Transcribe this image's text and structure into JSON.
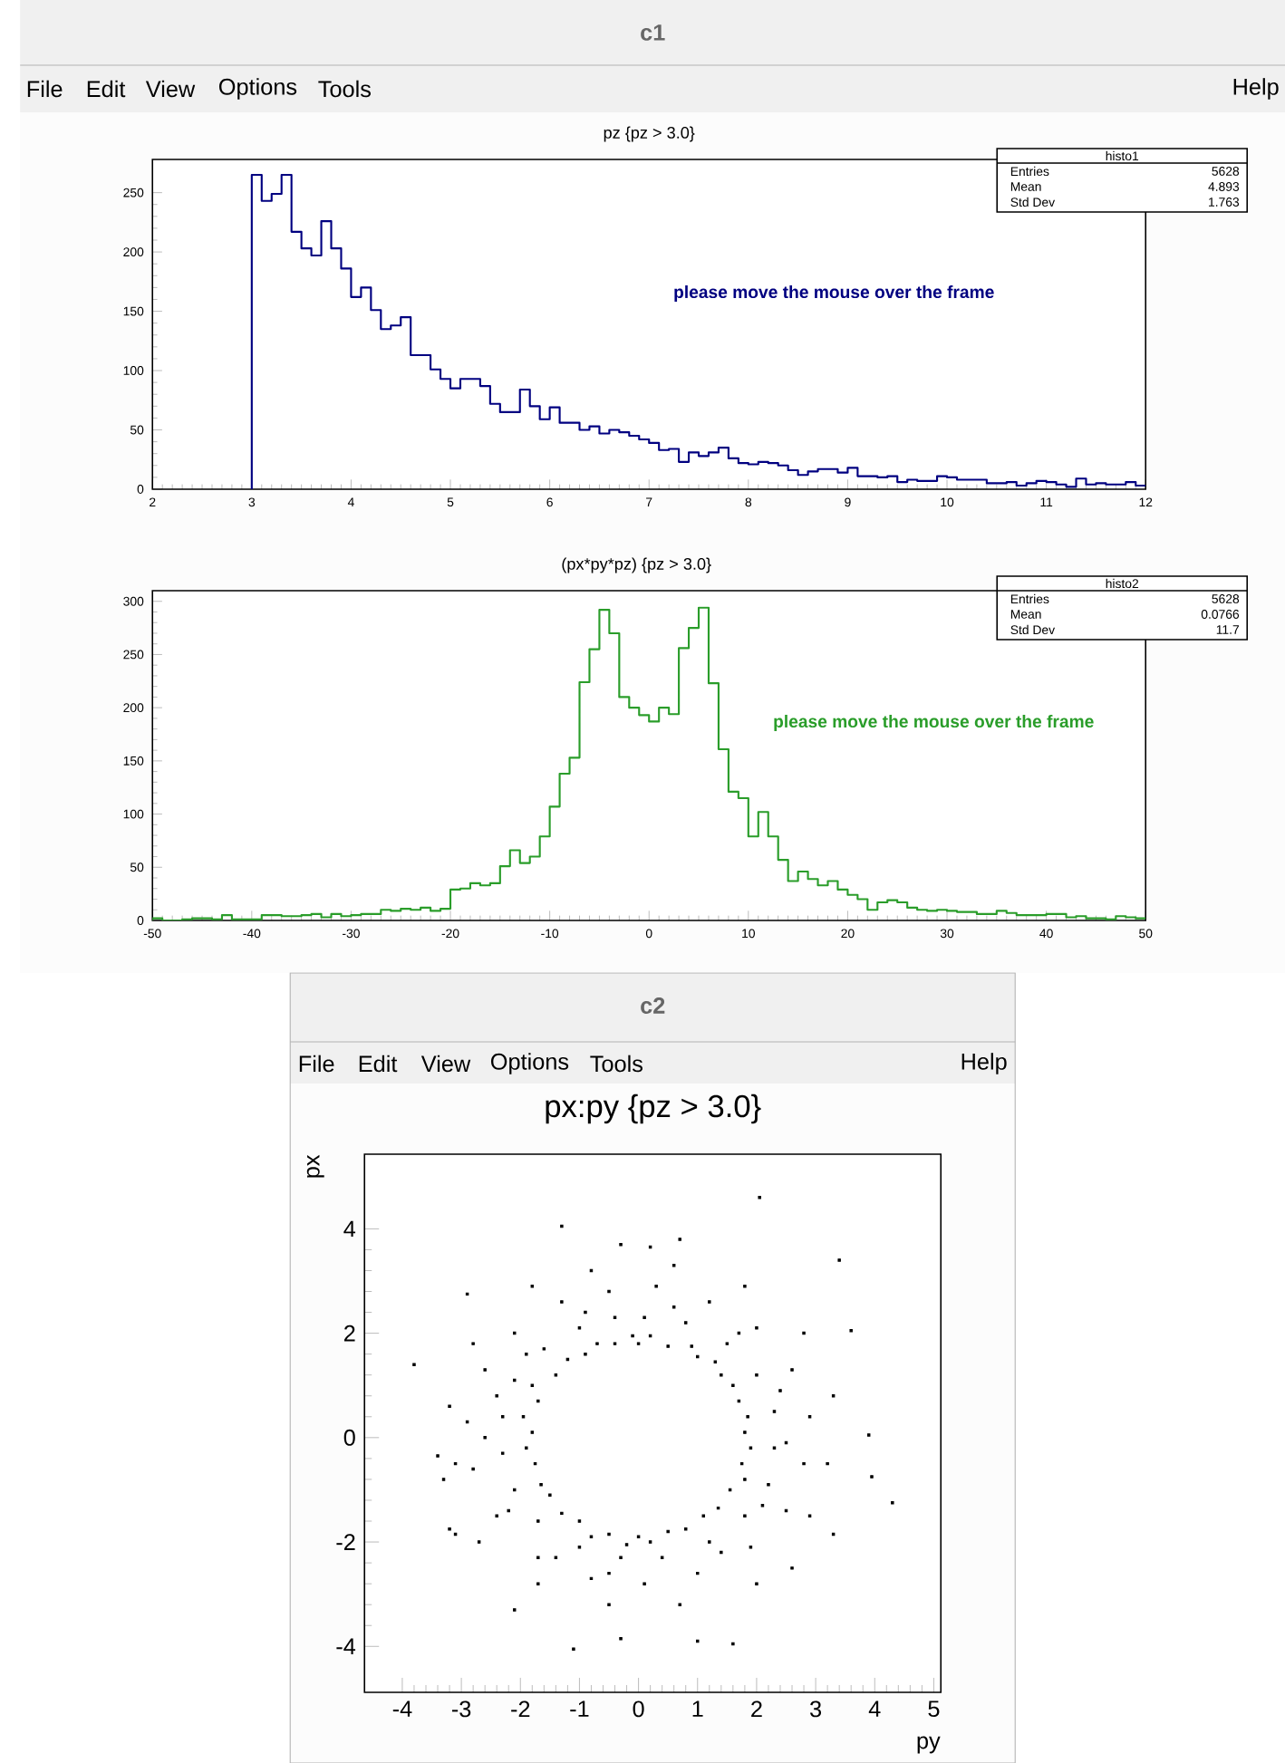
{
  "chart_data": [
    {
      "type": "histogram",
      "title": "pz {pz > 3.0}",
      "color": "#000080",
      "xlim": [
        2,
        12
      ],
      "ylim": [
        0,
        278
      ],
      "xticks": [
        2,
        3,
        4,
        5,
        6,
        7,
        8,
        9,
        10,
        11,
        12
      ],
      "yticks": [
        0,
        50,
        100,
        150,
        200,
        250
      ],
      "bins": [
        3.0,
        3.1,
        3.2,
        3.3,
        3.4,
        3.5,
        3.6,
        3.7,
        3.8,
        3.9,
        4.0,
        4.1,
        4.2,
        4.3,
        4.4,
        4.5,
        4.6,
        4.7,
        4.8,
        4.9,
        5.0,
        5.1,
        5.2,
        5.3,
        5.4,
        5.5,
        5.6,
        5.7,
        5.8,
        5.9,
        6.0,
        6.1,
        6.2,
        6.3,
        6.4,
        6.5,
        6.6,
        6.7,
        6.8,
        6.9,
        7.0,
        7.1,
        7.2,
        7.3,
        7.4,
        7.5,
        7.6,
        7.7,
        7.8,
        7.9,
        8.0,
        8.1,
        8.2,
        8.3,
        8.4,
        8.5,
        8.6,
        8.7,
        8.8,
        8.9,
        9.0,
        9.1,
        9.2,
        9.3,
        9.4,
        9.5,
        9.6,
        9.7,
        9.8,
        9.9,
        10.0,
        10.1,
        10.2,
        10.3,
        10.4,
        10.5,
        10.6,
        10.7,
        10.8,
        10.9,
        11.0,
        11.1,
        11.2,
        11.3,
        11.4,
        11.5,
        11.6,
        11.7,
        11.8,
        11.9,
        12.0
      ],
      "values": [
        265,
        243,
        249,
        265,
        217,
        203,
        197,
        226,
        203,
        186,
        162,
        170,
        151,
        135,
        138,
        145,
        113,
        113,
        101,
        93,
        85,
        93,
        93,
        87,
        72,
        65,
        65,
        84,
        70,
        59,
        69,
        56,
        56,
        50,
        53,
        47,
        50,
        48,
        45,
        42,
        39,
        33,
        34,
        23,
        31,
        28,
        31,
        35,
        26,
        22,
        21,
        23,
        22,
        20,
        16,
        12,
        15,
        17,
        17,
        14,
        18,
        11,
        11,
        10,
        11,
        6,
        8,
        7,
        7,
        11,
        10,
        8,
        8,
        8,
        5,
        5,
        6,
        3,
        5,
        7,
        6,
        4,
        2,
        9,
        4,
        5,
        4,
        4,
        6,
        3
      ],
      "annotations": [
        "c1",
        "File",
        "Edit",
        "View",
        "Options",
        "Tools",
        "Help",
        "please move the mouse over the frame",
        "histo1",
        "Entries",
        "5628",
        "Mean",
        "4.893",
        "Std Dev",
        "1.763"
      ]
    },
    {
      "type": "histogram",
      "title": "(px*py*pz) {pz > 3.0}",
      "color": "#2a9d2a",
      "xlim": [
        -50,
        50
      ],
      "ylim": [
        0,
        310
      ],
      "xticks": [
        -50,
        -40,
        -30,
        -20,
        -10,
        0,
        10,
        20,
        30,
        40,
        50
      ],
      "yticks": [
        0,
        50,
        100,
        150,
        200,
        250,
        300
      ],
      "bins": [
        -50,
        -49,
        -48,
        -47,
        -46,
        -45,
        -44,
        -43,
        -42,
        -41,
        -40,
        -39,
        -38,
        -37,
        -36,
        -35,
        -34,
        -33,
        -32,
        -31,
        -30,
        -29,
        -28,
        -27,
        -26,
        -25,
        -24,
        -23,
        -22,
        -21,
        -20,
        -19,
        -18,
        -17,
        -16,
        -15,
        -14,
        -13,
        -12,
        -11,
        -10,
        -9,
        -8,
        -7,
        -6,
        -5,
        -4,
        -3,
        -2,
        -1,
        0,
        1,
        2,
        3,
        4,
        5,
        6,
        7,
        8,
        9,
        10,
        11,
        12,
        13,
        14,
        15,
        16,
        17,
        18,
        19,
        20,
        21,
        22,
        23,
        24,
        25,
        26,
        27,
        28,
        29,
        30,
        31,
        32,
        33,
        34,
        35,
        36,
        37,
        38,
        39,
        40,
        41,
        42,
        43,
        44,
        45,
        46,
        47,
        48,
        49,
        50
      ],
      "values": [
        2,
        0,
        0,
        1,
        2,
        2,
        1,
        5,
        1,
        1,
        1,
        5,
        5,
        4,
        4,
        5,
        6,
        3,
        6,
        4,
        5,
        6,
        6,
        10,
        9,
        11,
        10,
        12,
        9,
        11,
        29,
        30,
        35,
        33,
        35,
        51,
        66,
        54,
        60,
        79,
        107,
        138,
        153,
        224,
        255,
        292,
        270,
        210,
        200,
        193,
        187,
        200,
        194,
        256,
        275,
        294,
        223,
        161,
        121,
        115,
        79,
        102,
        79,
        57,
        37,
        46,
        39,
        33,
        37,
        29,
        24,
        20,
        10,
        17,
        19,
        17,
        12,
        10,
        9,
        10,
        9,
        8,
        8,
        6,
        6,
        9,
        7,
        5,
        5,
        5,
        6,
        6,
        3,
        4,
        2,
        2,
        1,
        4,
        3,
        2
      ],
      "annotations": [
        "please move the mouse over the frame",
        "histo2",
        "Entries",
        "5628",
        "Mean",
        "0.0766",
        "Std Dev",
        "11.7"
      ]
    },
    {
      "type": "scatter",
      "title": "px:py {pz > 3.0}",
      "xlabel": "py",
      "ylabel": "px",
      "color": "#000000",
      "marker": "square",
      "xlim": [
        -4.64,
        5.12
      ],
      "ylim": [
        -4.88,
        5.43
      ],
      "xticks": [
        -4,
        -3,
        -2,
        -1,
        0,
        1,
        2,
        3,
        4,
        5
      ],
      "yticks": [
        -4,
        -2,
        0,
        2,
        4
      ],
      "x": [
        2.05,
        -1.3,
        0.7,
        -0.3,
        0.2,
        3.4,
        -2.9,
        -3.8,
        3.6,
        4.3,
        3.95,
        3.9,
        -3.4,
        -3.1,
        -3.2,
        -1.1,
        -0.3,
        1.6,
        1.0,
        -2.1,
        2.6,
        -3.3,
        3.3,
        0,
        0.5,
        1.0,
        1.4,
        1.7,
        1.8,
        1.75,
        1.55,
        1.1,
        0.5,
        0,
        -0.5,
        -1.0,
        -1.5,
        -1.75,
        -1.8,
        -1.7,
        -1.4,
        -0.9,
        -0.4,
        0.1,
        0.8,
        1.5,
        2.0,
        2.3,
        2.3,
        2.2,
        1.8,
        1.2,
        0.4,
        -0.3,
        -1.0,
        -1.7,
        -2.1,
        -2.3,
        -2.3,
        -2.1,
        -1.6,
        -1.0,
        -0.4,
        0.3,
        1.2,
        2.0,
        2.6,
        2.9,
        2.8,
        2.5,
        1.9,
        1.0,
        0.1,
        -0.8,
        -1.7,
        -2.4,
        -2.8,
        -2.9,
        -2.6,
        -2.1,
        -1.3,
        -0.5,
        0.2,
        0.9,
        1.3,
        1.6,
        1.85,
        1.9,
        1.8,
        1.35,
        0.8,
        0.2,
        -0.2,
        -0.8,
        -1.3,
        -1.65,
        -1.9,
        -1.95,
        -1.8,
        -1.2,
        -0.7,
        -0.1,
        0.6,
        1.7,
        2.4,
        2.5,
        2.1,
        1.4,
        -0.5,
        -1.4,
        -2.2,
        -2.6,
        -2.4,
        -1.9,
        -0.9,
        0.6,
        1.8,
        2.8,
        3.3,
        3.2,
        2.9,
        2.0,
        0.7,
        -0.5,
        -1.7,
        -2.7,
        -3.1,
        -3.2,
        -2.8,
        -1.8,
        -0.8
      ],
      "values": [
        4.6,
        4.05,
        3.8,
        3.7,
        3.65,
        3.4,
        2.75,
        1.4,
        2.05,
        -1.25,
        -0.75,
        0.05,
        -0.35,
        -1.85,
        -1.75,
        -4.05,
        -3.85,
        -3.95,
        -3.9,
        -3.3,
        -2.5,
        -0.8,
        -1.85,
        1.8,
        1.75,
        1.55,
        1.2,
        0.7,
        0.1,
        -0.5,
        -1.0,
        -1.5,
        -1.8,
        -1.9,
        -1.85,
        -1.6,
        -1.1,
        -0.5,
        0.1,
        0.7,
        1.2,
        1.6,
        1.8,
        2.3,
        2.2,
        1.8,
        1.2,
        0.5,
        -0.2,
        -0.9,
        -1.5,
        -2.0,
        -2.3,
        -2.3,
        -2.1,
        -1.6,
        -1.0,
        -0.3,
        0.4,
        1.1,
        1.7,
        2.1,
        2.3,
        2.9,
        2.6,
        2.1,
        1.3,
        0.4,
        -0.5,
        -1.4,
        -2.1,
        -2.6,
        -2.8,
        -2.7,
        -2.3,
        -1.5,
        -0.6,
        0.3,
        1.3,
        2.0,
        2.6,
        2.8,
        1.95,
        1.75,
        1.45,
        1.0,
        0.4,
        -0.2,
        -0.8,
        -1.35,
        -1.75,
        -2.0,
        -2.05,
        -1.9,
        -1.45,
        -0.9,
        -0.2,
        0.4,
        1.0,
        1.5,
        1.8,
        1.95,
        2.5,
        2.0,
        0.9,
        -0.1,
        -1.3,
        -2.2,
        -2.6,
        -2.3,
        -1.4,
        0.0,
        0.8,
        1.6,
        2.4,
        3.3,
        2.9,
        2.0,
        0.8,
        -0.5,
        -1.5,
        -2.8,
        -3.2,
        -3.2,
        -2.8,
        -2.0,
        -0.5,
        0.6,
        1.8,
        2.9,
        3.2
      ],
      "annotations": [
        "c2",
        "File",
        "Edit",
        "View",
        "Options",
        "Tools",
        "Help"
      ]
    }
  ]
}
